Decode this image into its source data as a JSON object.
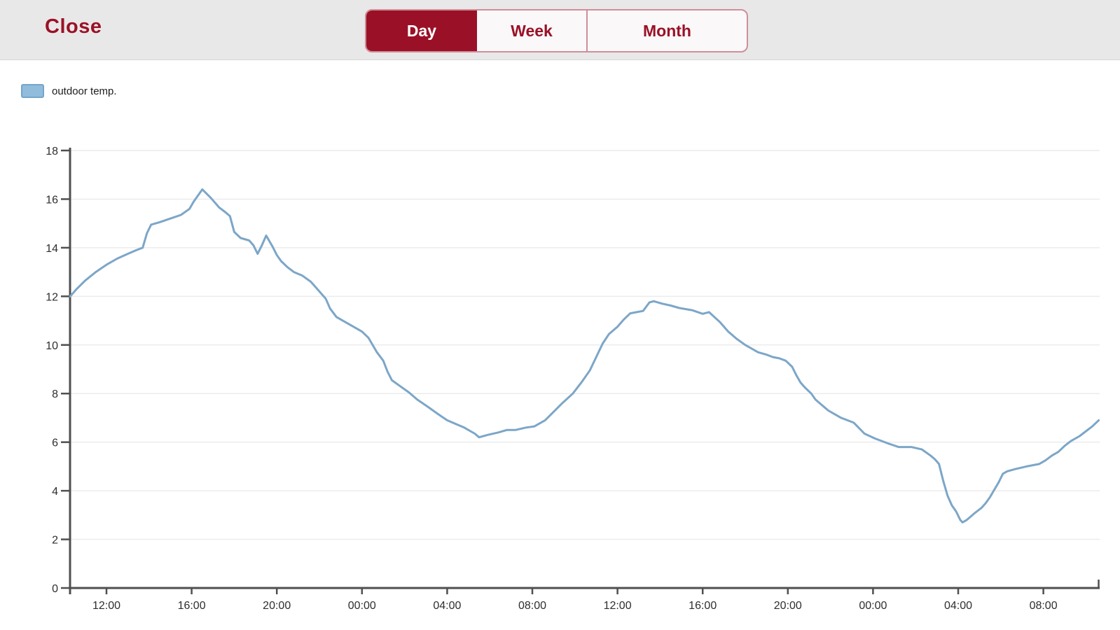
{
  "header": {
    "close_label": "Close",
    "tabs": [
      {
        "label": "Day",
        "selected": true
      },
      {
        "label": "Week",
        "selected": false
      },
      {
        "label": "Month",
        "selected": false
      }
    ]
  },
  "legend": {
    "label": "outdoor temp.",
    "swatch_color": "#92bcdc",
    "swatch_border": "#74a5c9"
  },
  "colors": {
    "accent_red": "#9a1127",
    "control_border": "#cf8e9b",
    "control_bg": "#faf8f8",
    "header_bg": "#e9e8e8",
    "line": "#7ca6c8",
    "grid": "#ececec",
    "axis": "#4f4f4f",
    "tick_text": "#2e2e2e"
  },
  "chart_data": {
    "type": "line",
    "title": "",
    "xlabel": "",
    "ylabel": "",
    "ylim": [
      0,
      18
    ],
    "grid": "horizontal",
    "legend_position": "top-left",
    "y_ticks": [
      0,
      2,
      4,
      6,
      8,
      10,
      12,
      14,
      16,
      18
    ],
    "x_ticks": [
      {
        "t": 12,
        "label": "12:00"
      },
      {
        "t": 16,
        "label": "16:00"
      },
      {
        "t": 20,
        "label": "20:00"
      },
      {
        "t": 24,
        "label": "00:00"
      },
      {
        "t": 28,
        "label": "04:00"
      },
      {
        "t": 32,
        "label": "08:00"
      },
      {
        "t": 36,
        "label": "12:00"
      },
      {
        "t": 40,
        "label": "16:00"
      },
      {
        "t": 44,
        "label": "20:00"
      },
      {
        "t": 48,
        "label": "00:00"
      },
      {
        "t": 52,
        "label": "04:00"
      },
      {
        "t": 56,
        "label": "08:00"
      }
    ],
    "x_range_hours": [
      10.3,
      58.6
    ],
    "series": [
      {
        "name": "outdoor temp.",
        "color": "#7ca6c8",
        "points": [
          [
            10.3,
            12.0
          ],
          [
            10.6,
            12.3
          ],
          [
            11.0,
            12.65
          ],
          [
            11.5,
            13.0
          ],
          [
            12.0,
            13.3
          ],
          [
            12.5,
            13.55
          ],
          [
            13.0,
            13.75
          ],
          [
            13.4,
            13.9
          ],
          [
            13.7,
            14.0
          ],
          [
            13.9,
            14.6
          ],
          [
            14.1,
            14.95
          ],
          [
            14.5,
            15.05
          ],
          [
            15.0,
            15.2
          ],
          [
            15.5,
            15.35
          ],
          [
            15.9,
            15.6
          ],
          [
            16.1,
            15.9
          ],
          [
            16.5,
            16.4
          ],
          [
            16.9,
            16.05
          ],
          [
            17.3,
            15.65
          ],
          [
            17.6,
            15.45
          ],
          [
            17.8,
            15.3
          ],
          [
            18.0,
            14.65
          ],
          [
            18.3,
            14.4
          ],
          [
            18.7,
            14.3
          ],
          [
            18.9,
            14.1
          ],
          [
            19.1,
            13.75
          ],
          [
            19.3,
            14.1
          ],
          [
            19.5,
            14.5
          ],
          [
            19.8,
            14.05
          ],
          [
            20.0,
            13.7
          ],
          [
            20.2,
            13.45
          ],
          [
            20.5,
            13.2
          ],
          [
            20.8,
            13.0
          ],
          [
            21.2,
            12.85
          ],
          [
            21.6,
            12.6
          ],
          [
            22.0,
            12.2
          ],
          [
            22.3,
            11.9
          ],
          [
            22.5,
            11.5
          ],
          [
            22.8,
            11.15
          ],
          [
            23.1,
            11.0
          ],
          [
            23.6,
            10.75
          ],
          [
            24.0,
            10.55
          ],
          [
            24.3,
            10.3
          ],
          [
            24.5,
            10.0
          ],
          [
            24.7,
            9.7
          ],
          [
            25.0,
            9.35
          ],
          [
            25.2,
            8.9
          ],
          [
            25.4,
            8.55
          ],
          [
            25.8,
            8.3
          ],
          [
            26.2,
            8.05
          ],
          [
            26.6,
            7.75
          ],
          [
            27.1,
            7.45
          ],
          [
            27.5,
            7.2
          ],
          [
            28.0,
            6.9
          ],
          [
            28.4,
            6.75
          ],
          [
            28.8,
            6.6
          ],
          [
            29.3,
            6.35
          ],
          [
            29.5,
            6.2
          ],
          [
            29.9,
            6.3
          ],
          [
            30.4,
            6.4
          ],
          [
            30.8,
            6.5
          ],
          [
            31.2,
            6.5
          ],
          [
            31.7,
            6.6
          ],
          [
            32.1,
            6.65
          ],
          [
            32.6,
            6.9
          ],
          [
            33.0,
            7.25
          ],
          [
            33.4,
            7.6
          ],
          [
            33.9,
            8.0
          ],
          [
            34.3,
            8.45
          ],
          [
            34.7,
            8.95
          ],
          [
            35.0,
            9.5
          ],
          [
            35.3,
            10.05
          ],
          [
            35.6,
            10.45
          ],
          [
            36.0,
            10.75
          ],
          [
            36.3,
            11.05
          ],
          [
            36.6,
            11.3
          ],
          [
            36.9,
            11.35
          ],
          [
            37.2,
            11.4
          ],
          [
            37.5,
            11.75
          ],
          [
            37.7,
            11.8
          ],
          [
            38.1,
            11.7
          ],
          [
            38.5,
            11.62
          ],
          [
            38.9,
            11.52
          ],
          [
            39.5,
            11.43
          ],
          [
            40.0,
            11.28
          ],
          [
            40.3,
            11.35
          ],
          [
            40.8,
            10.95
          ],
          [
            41.2,
            10.55
          ],
          [
            41.6,
            10.25
          ],
          [
            42.0,
            10.0
          ],
          [
            42.3,
            9.85
          ],
          [
            42.6,
            9.7
          ],
          [
            43.0,
            9.6
          ],
          [
            43.3,
            9.5
          ],
          [
            43.6,
            9.45
          ],
          [
            43.9,
            9.35
          ],
          [
            44.2,
            9.1
          ],
          [
            44.4,
            8.75
          ],
          [
            44.6,
            8.45
          ],
          [
            44.8,
            8.25
          ],
          [
            45.1,
            8.0
          ],
          [
            45.3,
            7.75
          ],
          [
            45.5,
            7.6
          ],
          [
            45.7,
            7.45
          ],
          [
            45.9,
            7.3
          ],
          [
            46.2,
            7.15
          ],
          [
            46.5,
            7.0
          ],
          [
            46.8,
            6.9
          ],
          [
            47.1,
            6.8
          ],
          [
            47.6,
            6.35
          ],
          [
            48.1,
            6.15
          ],
          [
            48.7,
            5.95
          ],
          [
            49.2,
            5.8
          ],
          [
            49.8,
            5.8
          ],
          [
            50.3,
            5.7
          ],
          [
            50.7,
            5.45
          ],
          [
            50.9,
            5.3
          ],
          [
            51.1,
            5.1
          ],
          [
            51.3,
            4.4
          ],
          [
            51.5,
            3.8
          ],
          [
            51.7,
            3.4
          ],
          [
            51.9,
            3.15
          ],
          [
            52.1,
            2.8
          ],
          [
            52.2,
            2.7
          ],
          [
            52.4,
            2.8
          ],
          [
            52.6,
            2.95
          ],
          [
            52.8,
            3.1
          ],
          [
            53.1,
            3.3
          ],
          [
            53.3,
            3.5
          ],
          [
            53.5,
            3.75
          ],
          [
            53.7,
            4.05
          ],
          [
            53.9,
            4.35
          ],
          [
            54.1,
            4.7
          ],
          [
            54.3,
            4.8
          ],
          [
            54.7,
            4.9
          ],
          [
            55.2,
            5.0
          ],
          [
            55.8,
            5.1
          ],
          [
            56.1,
            5.25
          ],
          [
            56.4,
            5.45
          ],
          [
            56.7,
            5.6
          ],
          [
            57.0,
            5.85
          ],
          [
            57.3,
            6.05
          ],
          [
            57.7,
            6.25
          ],
          [
            58.0,
            6.45
          ],
          [
            58.3,
            6.65
          ],
          [
            58.6,
            6.9
          ]
        ]
      }
    ]
  }
}
